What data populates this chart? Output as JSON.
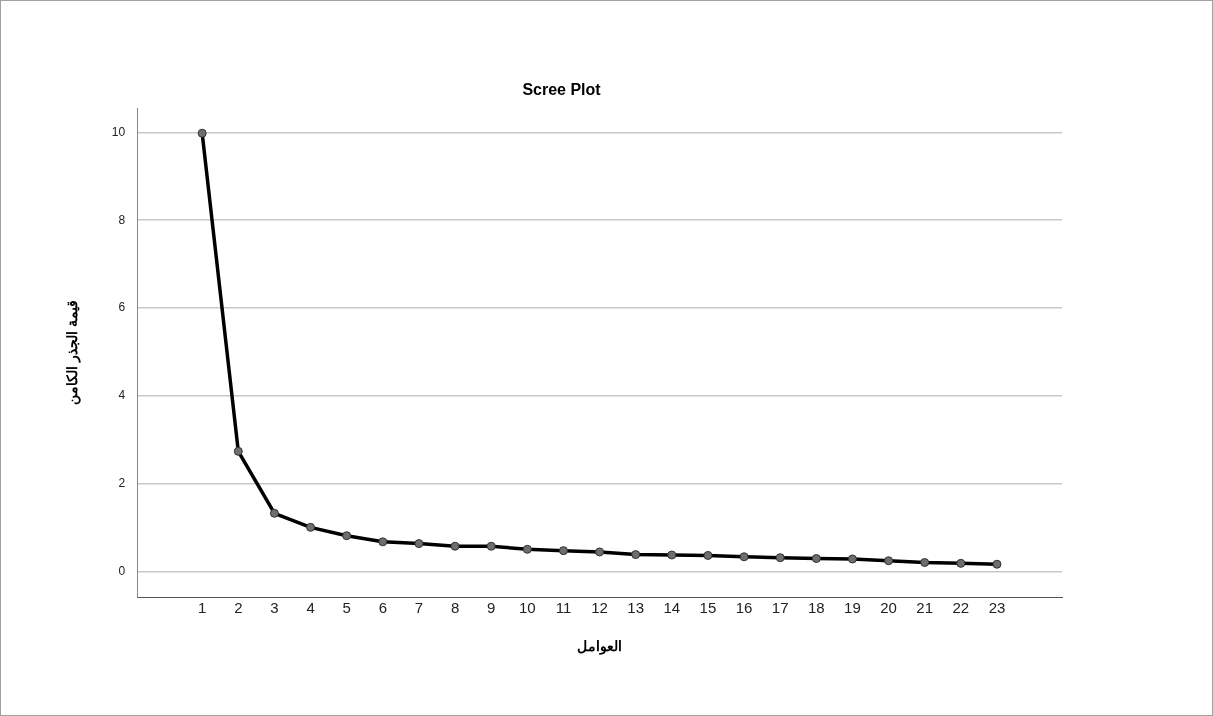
{
  "chart_data": {
    "type": "line",
    "title": "Scree Plot",
    "xlabel": "العوامل",
    "ylabel": "قيمة الجذر الكامن",
    "x": [
      1,
      2,
      3,
      4,
      5,
      6,
      7,
      8,
      9,
      10,
      11,
      12,
      13,
      14,
      15,
      16,
      17,
      18,
      19,
      20,
      21,
      22,
      23
    ],
    "series": [
      {
        "color": "#000000",
        "values": [
          9.98,
          2.74,
          1.33,
          1.01,
          0.82,
          0.68,
          0.64,
          0.58,
          0.58,
          0.51,
          0.48,
          0.45,
          0.39,
          0.38,
          0.37,
          0.34,
          0.32,
          0.3,
          0.29,
          0.25,
          0.21,
          0.19,
          0.17
        ]
      }
    ],
    "xlim": [
      -0.8,
      24.8
    ],
    "xticks": [
      1,
      2,
      3,
      4,
      5,
      6,
      7,
      8,
      9,
      10,
      11,
      12,
      13,
      14,
      15,
      16,
      17,
      18,
      19,
      20,
      21,
      22,
      23
    ],
    "ylim": [
      -0.58,
      10.55
    ],
    "yticks": [
      0,
      2,
      4,
      6,
      8,
      10
    ],
    "grid": "y",
    "legend": false,
    "marker": "circle",
    "line_style": "solid"
  }
}
